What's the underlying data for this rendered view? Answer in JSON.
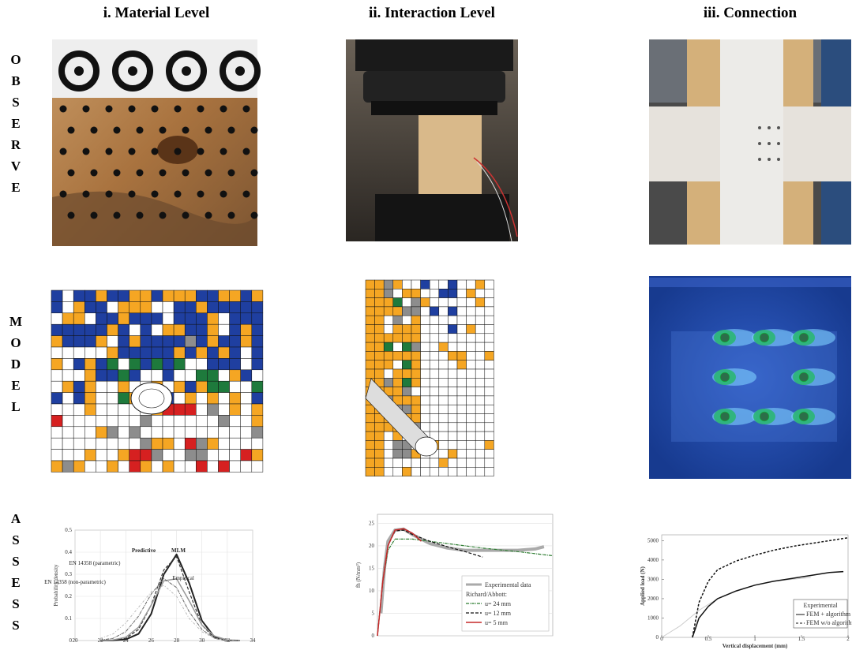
{
  "headers": [
    "i. Material Level",
    "ii. Interaction Level",
    "iii. Connection"
  ],
  "rows": [
    "OBSERVE",
    "MODEL",
    "ASSESS"
  ],
  "charts": [
    {
      "type": "line",
      "ylabel": "Probability density",
      "xlim": [
        20,
        34
      ],
      "xticks": [
        20,
        22,
        24,
        26,
        28,
        30,
        32,
        34
      ],
      "ylim": [
        0,
        0.5
      ],
      "yticks": [
        0,
        0.1,
        0.2,
        0.3,
        0.4,
        0.5
      ],
      "grid": true,
      "x": [
        22,
        23,
        24,
        25,
        26,
        27,
        28,
        29,
        30,
        31,
        32,
        33
      ],
      "series": [
        {
          "name": "MLM",
          "color": "#222222",
          "dash": "none",
          "width": 2,
          "values": [
            0,
            0.001,
            0.005,
            0.03,
            0.12,
            0.3,
            0.39,
            0.26,
            0.09,
            0.015,
            0.001,
            0
          ]
        },
        {
          "name": "Predictive",
          "color": "#333333",
          "dash": "4 2",
          "width": 1.2,
          "values": [
            0,
            0.002,
            0.01,
            0.05,
            0.16,
            0.32,
            0.38,
            0.22,
            0.07,
            0.01,
            0,
            0
          ]
        },
        {
          "name": "Empirical",
          "color": "#999999",
          "dash": "none",
          "width": 1.5,
          "values": [
            0,
            0.003,
            0.015,
            0.06,
            0.16,
            0.27,
            0.28,
            0.18,
            0.07,
            0.02,
            0.003,
            0
          ]
        },
        {
          "name": "EN 14358 (parametric)",
          "color": "#666666",
          "dash": "4 1 1 1",
          "width": 1,
          "values": [
            0.002,
            0.01,
            0.04,
            0.11,
            0.21,
            0.28,
            0.24,
            0.13,
            0.05,
            0.01,
            0.002,
            0
          ]
        },
        {
          "name": "EN 14358 (non-parametric)",
          "color": "#bbbbbb",
          "dash": "3 2 1 2",
          "width": 1,
          "values": [
            0.01,
            0.03,
            0.08,
            0.15,
            0.22,
            0.25,
            0.2,
            0.1,
            0.04,
            0.01,
            0.002,
            0
          ]
        }
      ]
    },
    {
      "type": "line",
      "ylabel": "fh (N/mm²)",
      "legend_subtitle": "Richard/Abbott:",
      "xlim": [
        0,
        10
      ],
      "ylim": [
        0,
        27
      ],
      "yticks": [
        0,
        5,
        10,
        15,
        20,
        25
      ],
      "grid": true,
      "series": [
        {
          "name": "Experimental data",
          "color": "#aaaaaa",
          "dash": "none",
          "width": 4,
          "x": [
            0.2,
            0.4,
            0.6,
            1,
            1.5,
            2,
            3,
            4,
            5,
            6,
            7,
            8,
            9,
            9.5
          ],
          "values": [
            5,
            15,
            21,
            23.5,
            23.7,
            22.5,
            20.5,
            19.5,
            19,
            19,
            19,
            19,
            19.3,
            19.8
          ]
        },
        {
          "name": "u= 24 mm",
          "color": "#2e7d32",
          "dash": "4 1 1 1",
          "width": 1.2,
          "x": [
            0,
            0.3,
            0.6,
            1,
            2,
            4,
            6,
            8,
            10
          ],
          "values": [
            0,
            12,
            19,
            21.5,
            21.5,
            20.5,
            19.5,
            18.7,
            17.8
          ]
        },
        {
          "name": "u= 12 mm",
          "color": "#111111",
          "dash": "4 2",
          "width": 1.2,
          "x": [
            0,
            0.3,
            0.6,
            1,
            1.5,
            2,
            3,
            4,
            5,
            6
          ],
          "values": [
            0,
            12,
            20,
            23.3,
            23.5,
            22.5,
            21,
            19.8,
            18.7,
            17.5
          ]
        },
        {
          "name": "u= 5 mm",
          "color": "#c62828",
          "dash": "none",
          "width": 1.5,
          "x": [
            0,
            0.3,
            0.6,
            1,
            1.5,
            2,
            2.5
          ],
          "values": [
            0,
            12,
            20,
            23.5,
            23.8,
            22.8,
            21
          ]
        }
      ]
    },
    {
      "type": "line",
      "xlabel": "Vertical displacement (mm)",
      "ylabel": "Applied load (N)",
      "xlim": [
        0,
        2
      ],
      "xticks": [
        0,
        0.5,
        1,
        1.5,
        2
      ],
      "ylim": [
        0,
        5300
      ],
      "yticks": [
        0,
        1000,
        2000,
        3000,
        4000,
        5000
      ],
      "grid": false,
      "series": [
        {
          "name": "Experimental",
          "color": "#cccccc",
          "dash": "none",
          "width": 1,
          "x": [
            0,
            0.2,
            0.4,
            0.6,
            0.8,
            1,
            1.2,
            1.4,
            1.6
          ],
          "values": [
            0,
            600,
            1400,
            2000,
            2400,
            2700,
            2900,
            3000,
            3100
          ]
        },
        {
          "name": "FEM + algorithm",
          "color": "#111111",
          "dash": "none",
          "width": 1.5,
          "x": [
            0.33,
            0.4,
            0.5,
            0.6,
            0.8,
            1,
            1.2,
            1.4,
            1.6,
            1.8,
            1.95
          ],
          "values": [
            0,
            1000,
            1600,
            2000,
            2400,
            2700,
            2900,
            3050,
            3200,
            3350,
            3400
          ]
        },
        {
          "name": "FEM w/o algorithm",
          "color": "#111111",
          "dash": "3 2",
          "width": 1.5,
          "x": [
            0.33,
            0.4,
            0.5,
            0.6,
            0.8,
            1,
            1.2,
            1.4,
            1.6,
            1.8,
            2
          ],
          "values": [
            0,
            1800,
            2900,
            3500,
            3950,
            4250,
            4500,
            4700,
            4850,
            5000,
            5150
          ]
        }
      ]
    }
  ]
}
